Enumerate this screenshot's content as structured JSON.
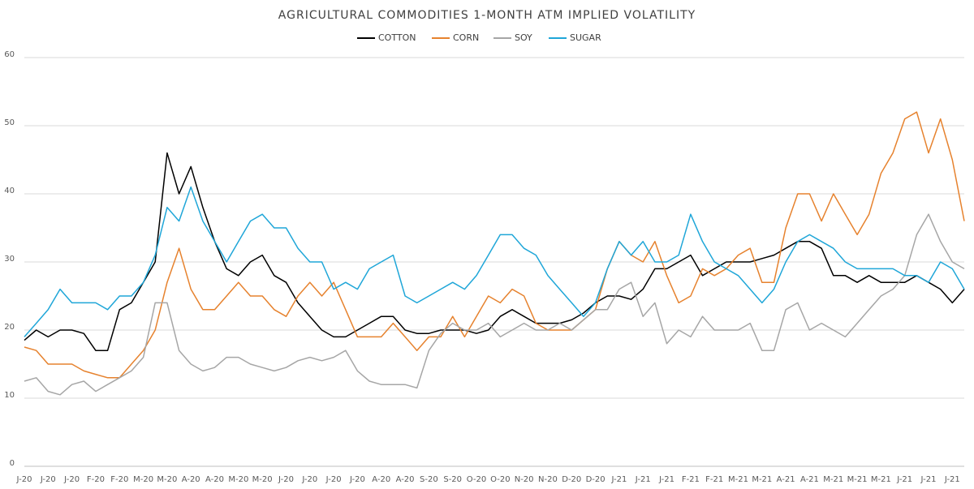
{
  "chart_data": {
    "type": "line",
    "title": "AGRICULTURAL COMMODITIES 1-MONTH ATM IMPLIED VOLATILITY",
    "categories": [
      "J-20",
      null,
      "J-20",
      null,
      "J-20",
      null,
      "F-20",
      null,
      "F-20",
      null,
      "M-20",
      null,
      "M-20",
      null,
      "A-20",
      null,
      "A-20",
      null,
      "M-20",
      null,
      "M-20",
      null,
      "J-20",
      null,
      "J-20",
      null,
      "J-20",
      null,
      "J-20",
      null,
      "A-20",
      null,
      "A-20",
      null,
      "S-20",
      null,
      "S-20",
      null,
      "O-20",
      null,
      "O-20",
      null,
      "N-20",
      null,
      "N-20",
      null,
      "D-20",
      null,
      "D-20",
      null,
      "J-21",
      null,
      "J-21",
      null,
      "J-21",
      null,
      "F-21",
      null,
      "F-21",
      null,
      "M-21",
      null,
      "M-21",
      null,
      "A-21",
      null,
      "A-21",
      null,
      "M-21",
      null,
      "M-21",
      null,
      "M-21",
      null,
      "J-21",
      null,
      "J-21",
      null,
      "J-21",
      null
    ],
    "series": [
      {
        "name": "COTTON",
        "color": "#000000",
        "values": [
          18.5,
          20,
          19,
          20,
          20,
          19.5,
          17,
          17,
          23,
          24,
          27,
          30,
          46,
          40,
          44,
          38,
          33,
          29,
          28,
          30,
          31,
          28,
          27,
          24,
          22,
          20,
          19,
          19,
          20,
          21,
          22,
          22,
          20,
          19.5,
          19.5,
          20,
          20,
          20,
          19.5,
          20,
          22,
          23,
          22,
          21,
          21,
          21,
          21.5,
          22.5,
          24,
          25,
          25,
          24.5,
          26,
          29,
          29,
          30,
          31,
          28,
          29,
          30,
          30,
          30,
          30.5,
          31,
          32,
          33,
          33,
          32,
          28,
          28,
          27,
          28,
          27,
          27,
          27,
          28,
          27,
          26,
          24,
          26
        ]
      },
      {
        "name": "CORN",
        "color": "#e6822e",
        "values": [
          17.5,
          17,
          15,
          15,
          15,
          14,
          13.5,
          13,
          13,
          15,
          17,
          20,
          27,
          32,
          26,
          23,
          23,
          25,
          27,
          25,
          25,
          23,
          22,
          25,
          27,
          25,
          27,
          23,
          19,
          19,
          19,
          21,
          19,
          17,
          19,
          19,
          22,
          19,
          22,
          25,
          24,
          26,
          25,
          21,
          20,
          20,
          20,
          21.5,
          23,
          29,
          33,
          31,
          30,
          33,
          28,
          24,
          25,
          29,
          28,
          29,
          31,
          32,
          27,
          27,
          35,
          40,
          40,
          36,
          40,
          37,
          34,
          37,
          43,
          46,
          51,
          52,
          46,
          51,
          45,
          36
        ]
      },
      {
        "name": "SOY",
        "color": "#a6a6a6",
        "values": [
          12.5,
          13,
          11,
          10.5,
          12,
          12.5,
          11,
          12,
          13,
          14,
          16,
          24,
          24,
          17,
          15,
          14,
          14.5,
          16,
          16,
          15,
          14.5,
          14,
          14.5,
          15.5,
          16,
          15.5,
          16,
          17,
          14,
          12.5,
          12,
          12,
          12,
          11.5,
          17,
          19.5,
          21,
          20,
          20,
          21,
          19,
          20,
          21,
          20,
          20,
          21,
          20,
          21.5,
          23,
          23,
          26,
          27,
          22,
          24,
          18,
          20,
          19,
          22,
          20,
          20,
          20,
          21,
          17,
          17,
          23,
          24,
          20,
          21,
          20,
          19,
          21,
          23,
          25,
          26,
          28,
          34,
          37,
          33,
          30,
          29
        ]
      },
      {
        "name": "SUGAR",
        "color": "#1fa6d8",
        "values": [
          19,
          21,
          23,
          26,
          24,
          24,
          24,
          23,
          25,
          25,
          27,
          31,
          38,
          36,
          41,
          36,
          33,
          30,
          33,
          36,
          37,
          35,
          35,
          32,
          30,
          30,
          26,
          27,
          26,
          29,
          30,
          31,
          25,
          24,
          25,
          26,
          27,
          26,
          28,
          31,
          34,
          34,
          32,
          31,
          28,
          26,
          24,
          22,
          24,
          29,
          33,
          31,
          33,
          30,
          30,
          31,
          37,
          33,
          30,
          29,
          28,
          26,
          24,
          26,
          30,
          33,
          34,
          33,
          32,
          30,
          29,
          29,
          29,
          29,
          28,
          28,
          27,
          30,
          29,
          26
        ]
      }
    ],
    "ylim": [
      0,
      60
    ],
    "yticks": [
      0,
      10,
      20,
      30,
      40,
      50,
      60
    ],
    "grid": true,
    "legend": "top"
  }
}
